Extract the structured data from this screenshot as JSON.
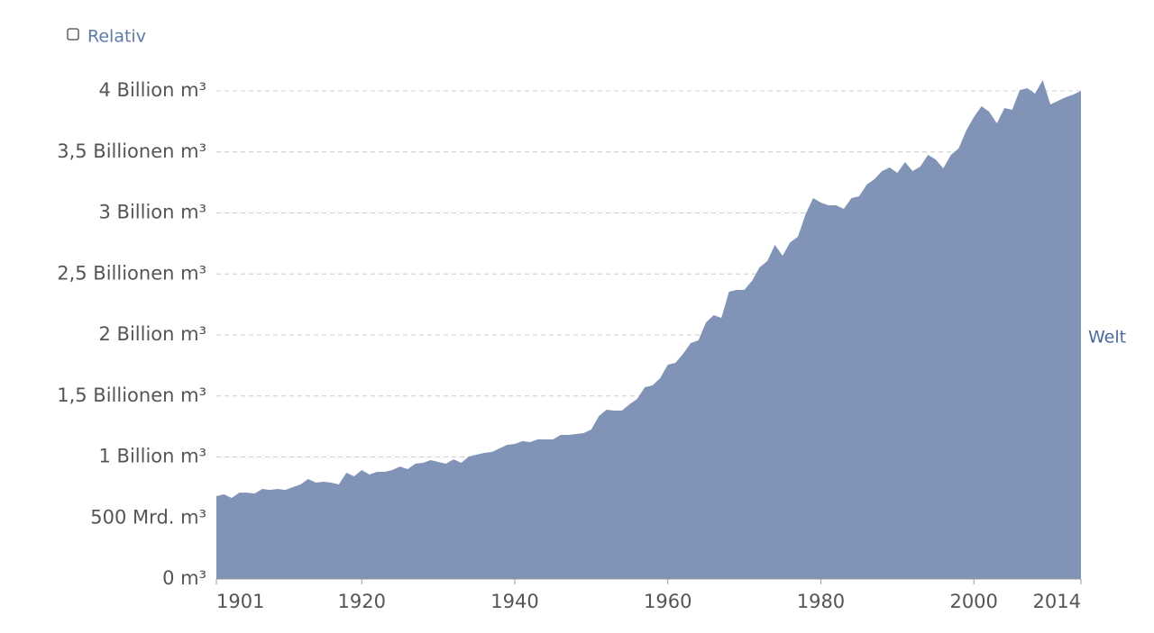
{
  "chart_data": {
    "type": "area",
    "toggle": "Relativ",
    "x": [
      1901,
      1902,
      1903,
      1904,
      1905,
      1906,
      1907,
      1908,
      1909,
      1910,
      1911,
      1912,
      1913,
      1914,
      1915,
      1916,
      1917,
      1918,
      1919,
      1920,
      1921,
      1922,
      1923,
      1924,
      1925,
      1926,
      1927,
      1928,
      1929,
      1930,
      1931,
      1932,
      1933,
      1934,
      1935,
      1936,
      1937,
      1938,
      1939,
      1940,
      1941,
      1942,
      1943,
      1944,
      1945,
      1946,
      1947,
      1948,
      1949,
      1950,
      1951,
      1952,
      1953,
      1954,
      1955,
      1956,
      1957,
      1958,
      1959,
      1960,
      1961,
      1962,
      1963,
      1964,
      1965,
      1966,
      1967,
      1968,
      1969,
      1970,
      1971,
      1972,
      1973,
      1974,
      1975,
      1976,
      1977,
      1978,
      1979,
      1980,
      1981,
      1982,
      1983,
      1984,
      1985,
      1986,
      1987,
      1988,
      1989,
      1990,
      1991,
      1992,
      1993,
      1994,
      1995,
      1996,
      1997,
      1998,
      1999,
      2000,
      2001,
      2002,
      2003,
      2004,
      2005,
      2006,
      2007,
      2008,
      2009,
      2010,
      2011,
      2012,
      2013,
      2014
    ],
    "series": [
      {
        "name": "Welt",
        "color": "#8194b8",
        "values": [
          679000000000.0,
          694000000000.0,
          664000000000.0,
          708000000000.0,
          708000000000.0,
          700000000000.0,
          738000000000.0,
          730000000000.0,
          738000000000.0,
          730000000000.0,
          753000000000.0,
          775000000000.0,
          819000000000.0,
          790000000000.0,
          797000000000.0,
          790000000000.0,
          775000000000.0,
          871000000000.0,
          841000000000.0,
          893000000000.0,
          856000000000.0,
          878000000000.0,
          878000000000.0,
          893000000000.0,
          922000000000.0,
          900000000000.0,
          945000000000.0,
          952000000000.0,
          974000000000.0,
          959000000000.0,
          945000000000.0,
          981000000000.0,
          952000000000.0,
          1004000000000.0,
          1018000000000.0,
          1033000000000.0,
          1041000000000.0,
          1070000000000.0,
          1100000000000.0,
          1107000000000.0,
          1129000000000.0,
          1122000000000.0,
          1144000000000.0,
          1144000000000.0,
          1144000000000.0,
          1181000000000.0,
          1181000000000.0,
          1188000000000.0,
          1196000000000.0,
          1225000000000.0,
          1336000000000.0,
          1387000000000.0,
          1380000000000.0,
          1380000000000.0,
          1432000000000.0,
          1476000000000.0,
          1572000000000.0,
          1587000000000.0,
          1646000000000.0,
          1756000000000.0,
          1771000000000.0,
          1845000000000.0,
          1934000000000.0,
          1956000000000.0,
          2103000000000.0,
          2162000000000.0,
          2140000000000.0,
          2354000000000.0,
          2369000000000.0,
          2369000000000.0,
          2443000000000.0,
          2554000000000.0,
          2605000000000.0,
          2738000000000.0,
          2649000000000.0,
          2760000000000.0,
          2804000000000.0,
          2989000000000.0,
          3122000000000.0,
          3085000000000.0,
          3063000000000.0,
          3063000000000.0,
          3033000000000.0,
          3122000000000.0,
          3137000000000.0,
          3232000000000.0,
          3277000000000.0,
          3343000000000.0,
          3373000000000.0,
          3328000000000.0,
          3417000000000.0,
          3343000000000.0,
          3380000000000.0,
          3476000000000.0,
          3439000000000.0,
          3365000000000.0,
          3476000000000.0,
          3528000000000.0,
          3675000000000.0,
          3786000000000.0,
          3875000000000.0,
          3830000000000.0,
          3734000000000.0,
          3860000000000.0,
          3845000000000.0,
          4007000000000.0,
          4022000000000.0,
          3978000000000.0,
          4089000000000.0,
          3889000000000.0,
          3919000000000.0,
          3948000000000.0,
          3970000000000.0,
          4000000000000.0
        ]
      }
    ],
    "xlim": [
      1901,
      2014
    ],
    "xticks": [
      1901,
      1920,
      1940,
      1960,
      1980,
      2000,
      2014
    ],
    "ylim": [
      0,
      4000000000000.0
    ],
    "yticks": [
      {
        "value": 0,
        "label": "0 m³"
      },
      {
        "value": 500000000000.0,
        "label": "500 Mrd. m³"
      },
      {
        "value": 1000000000000.0,
        "label": "1 Billion m³"
      },
      {
        "value": 1500000000000.0,
        "label": "1,5 Billionen m³"
      },
      {
        "value": 2000000000000.0,
        "label": "2 Billion m³"
      },
      {
        "value": 2500000000000.0,
        "label": "2,5 Billionen m³"
      },
      {
        "value": 3000000000000.0,
        "label": "3 Billion m³"
      },
      {
        "value": 3500000000000.0,
        "label": "3,5 Billionen m³"
      },
      {
        "value": 4000000000000.0,
        "label": "4 Billion m³"
      }
    ],
    "grid": true
  }
}
